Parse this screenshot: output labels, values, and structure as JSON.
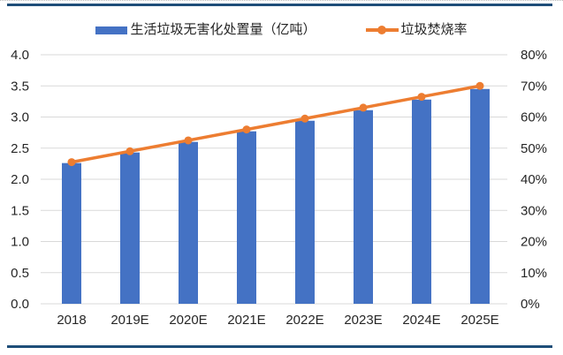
{
  "colors": {
    "bar": "#4472C4",
    "line": "#ED7D31",
    "border_rule": "#1F4E79",
    "grid": "#D9D9D9",
    "text": "#262626"
  },
  "legend": {
    "bar_label": "生活垃圾无害化处置量（亿吨）",
    "line_label": "垃圾焚烧率"
  },
  "chart_data": {
    "type": "bar",
    "subtype": "combo-bar-line",
    "title": "",
    "categories": [
      "2018",
      "2019E",
      "2020E",
      "2021E",
      "2022E",
      "2023E",
      "2024E",
      "2025E"
    ],
    "series": [
      {
        "name": "生活垃圾无害化处置量（亿吨）",
        "type": "bar",
        "axis": "left",
        "unit": "亿吨",
        "values": [
          2.26,
          2.43,
          2.6,
          2.77,
          2.94,
          3.11,
          3.28,
          3.45
        ]
      },
      {
        "name": "垃圾焚烧率",
        "type": "line",
        "axis": "right",
        "unit": "%",
        "values": [
          45.5,
          49.0,
          52.5,
          56.0,
          59.5,
          63.0,
          66.5,
          70.0
        ]
      }
    ],
    "left_axis": {
      "min": 0.0,
      "max": 4.0,
      "step": 0.5,
      "tick_labels": [
        "0.0",
        "0.5",
        "1.0",
        "1.5",
        "2.0",
        "2.5",
        "3.0",
        "3.5",
        "4.0"
      ]
    },
    "right_axis": {
      "min": 0,
      "max": 80,
      "step": 10,
      "tick_labels": [
        "0%",
        "10%",
        "20%",
        "30%",
        "40%",
        "50%",
        "60%",
        "70%",
        "80%"
      ]
    },
    "grid": "horizontal-only",
    "legend_position": "top-center"
  }
}
